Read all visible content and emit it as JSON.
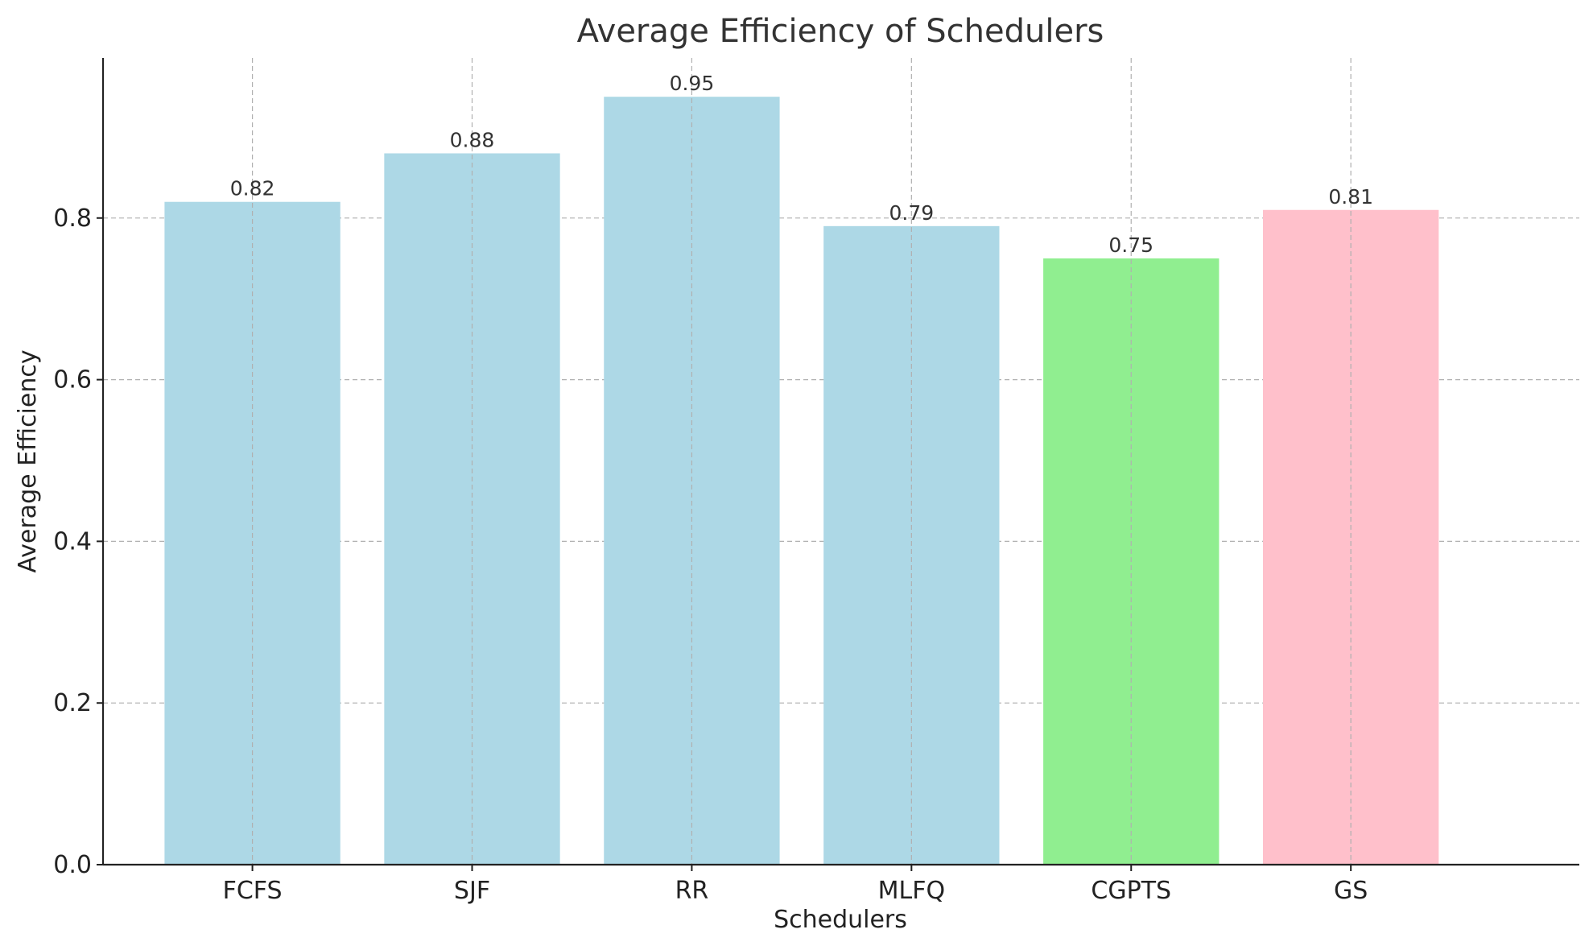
{
  "chart_data": {
    "type": "bar",
    "title": "Average Efficiency of Schedulers",
    "xlabel": "Schedulers",
    "ylabel": "Average Efficiency",
    "categories": [
      "FCFS",
      "SJF",
      "RR",
      "MLFQ",
      "CGPTS",
      "GS"
    ],
    "values": [
      0.82,
      0.88,
      0.95,
      0.79,
      0.75,
      0.81
    ],
    "value_labels": [
      "0.82",
      "0.88",
      "0.95",
      "0.79",
      "0.75",
      "0.81"
    ],
    "bar_colors": [
      "#add8e6",
      "#add8e6",
      "#add8e6",
      "#add8e6",
      "#90ee90",
      "#ffc0cb"
    ],
    "ylim": [
      0,
      0.998
    ],
    "yticks": [
      0.0,
      0.2,
      0.4,
      0.6,
      0.8
    ],
    "ytick_labels": [
      "0.0",
      "0.2",
      "0.4",
      "0.6",
      "0.8"
    ],
    "grid": true
  }
}
